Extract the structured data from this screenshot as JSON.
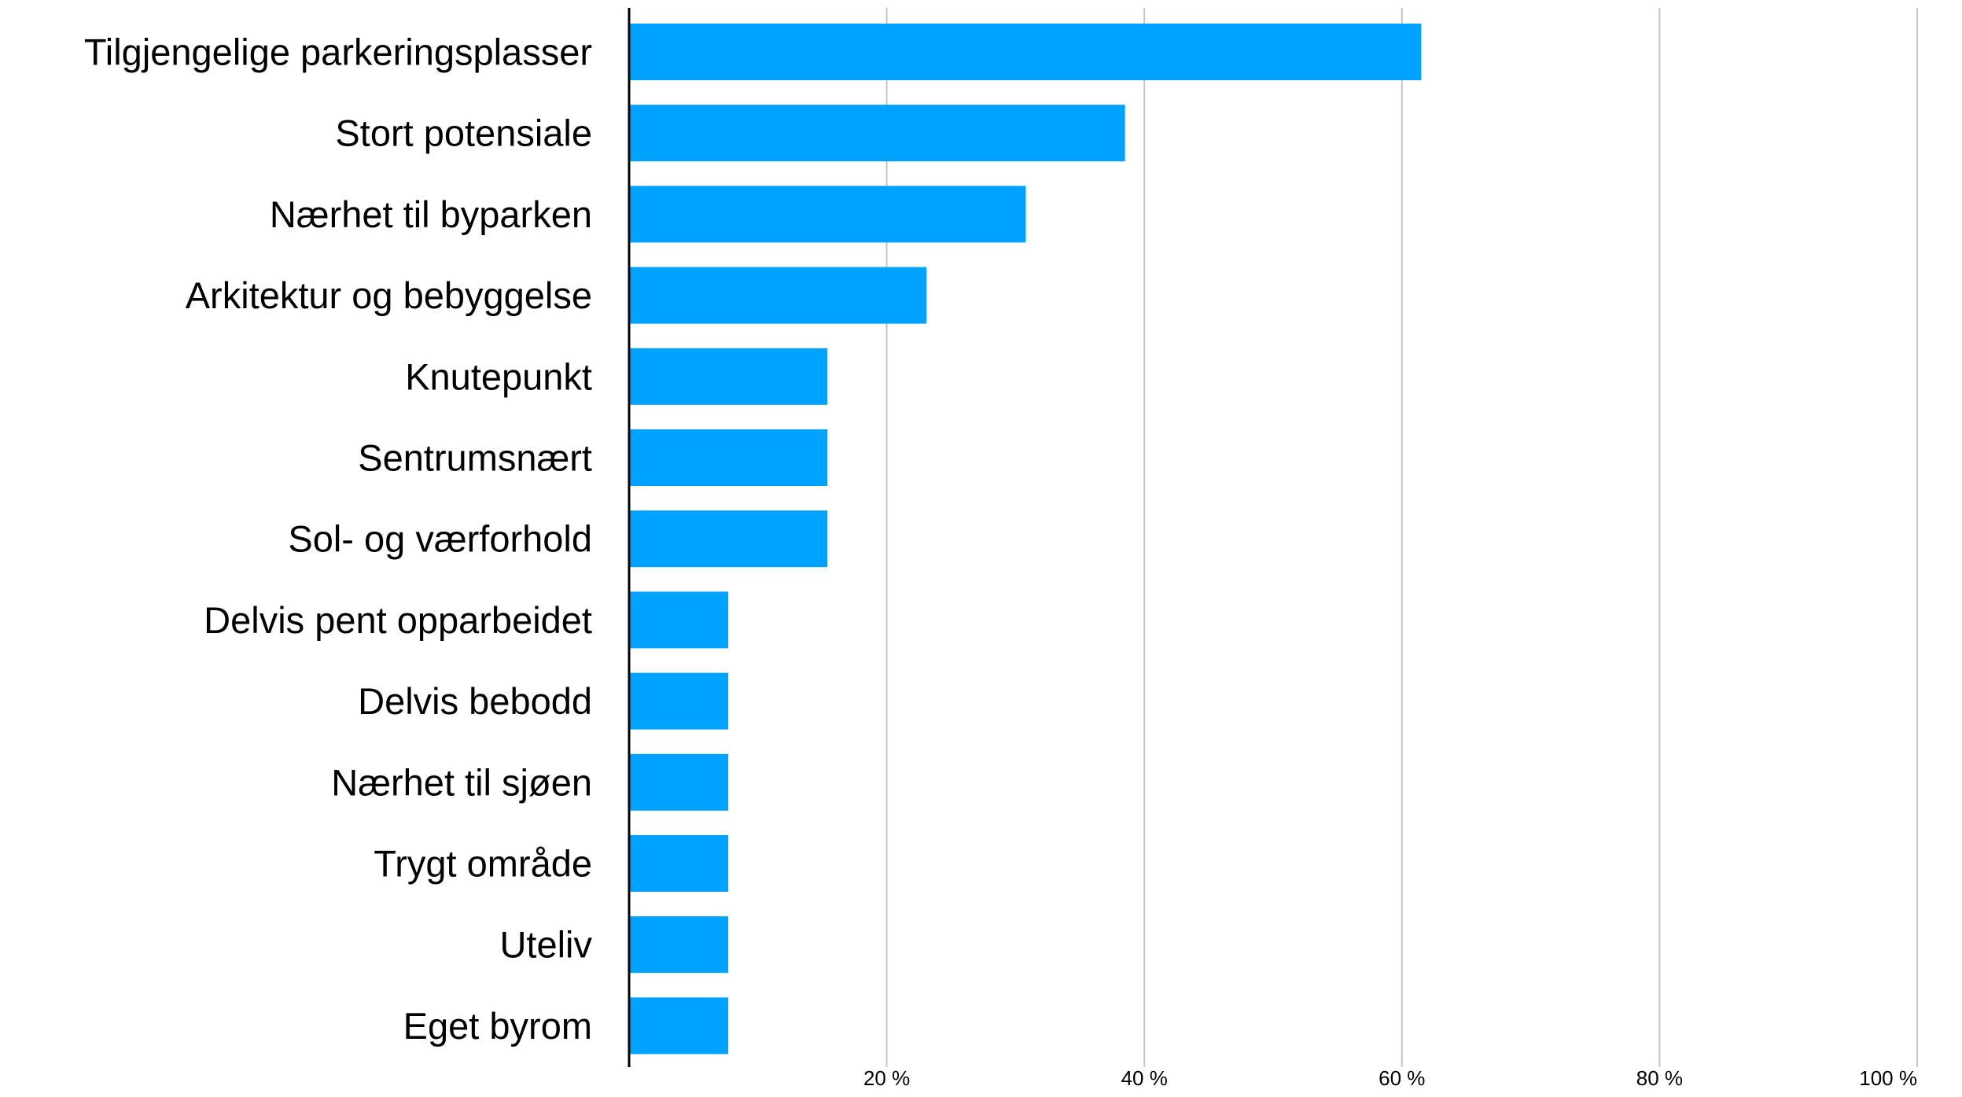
{
  "chart_data": {
    "type": "bar",
    "orientation": "horizontal",
    "categories": [
      "Tilgjengelige parkeringsplasser",
      "Stort potensiale",
      "Nærhet til byparken",
      "Arkitektur og bebyggelse",
      "Knutepunkt",
      "Sentrumsnært",
      "Sol- og værforhold",
      "Delvis pent opparbeidet",
      "Delvis bebodd",
      "Nærhet til sjøen",
      "Trygt område",
      "Uteliv",
      "Eget byrom"
    ],
    "values": [
      61.5,
      38.5,
      30.8,
      23.1,
      15.4,
      15.4,
      15.4,
      7.7,
      7.7,
      7.7,
      7.7,
      7.7,
      7.7
    ],
    "xlim": [
      0,
      100
    ],
    "xticks": [
      20,
      40,
      60,
      80,
      100
    ],
    "xtick_labels": [
      "20 %",
      "40 %",
      "60 %",
      "80 %",
      "100 %"
    ],
    "grid": "vertical",
    "bar_color": "#00A2FF",
    "grid_color": "#C4C4C4",
    "axis_color": "#000000",
    "title": "",
    "xlabel": "",
    "ylabel": ""
  }
}
